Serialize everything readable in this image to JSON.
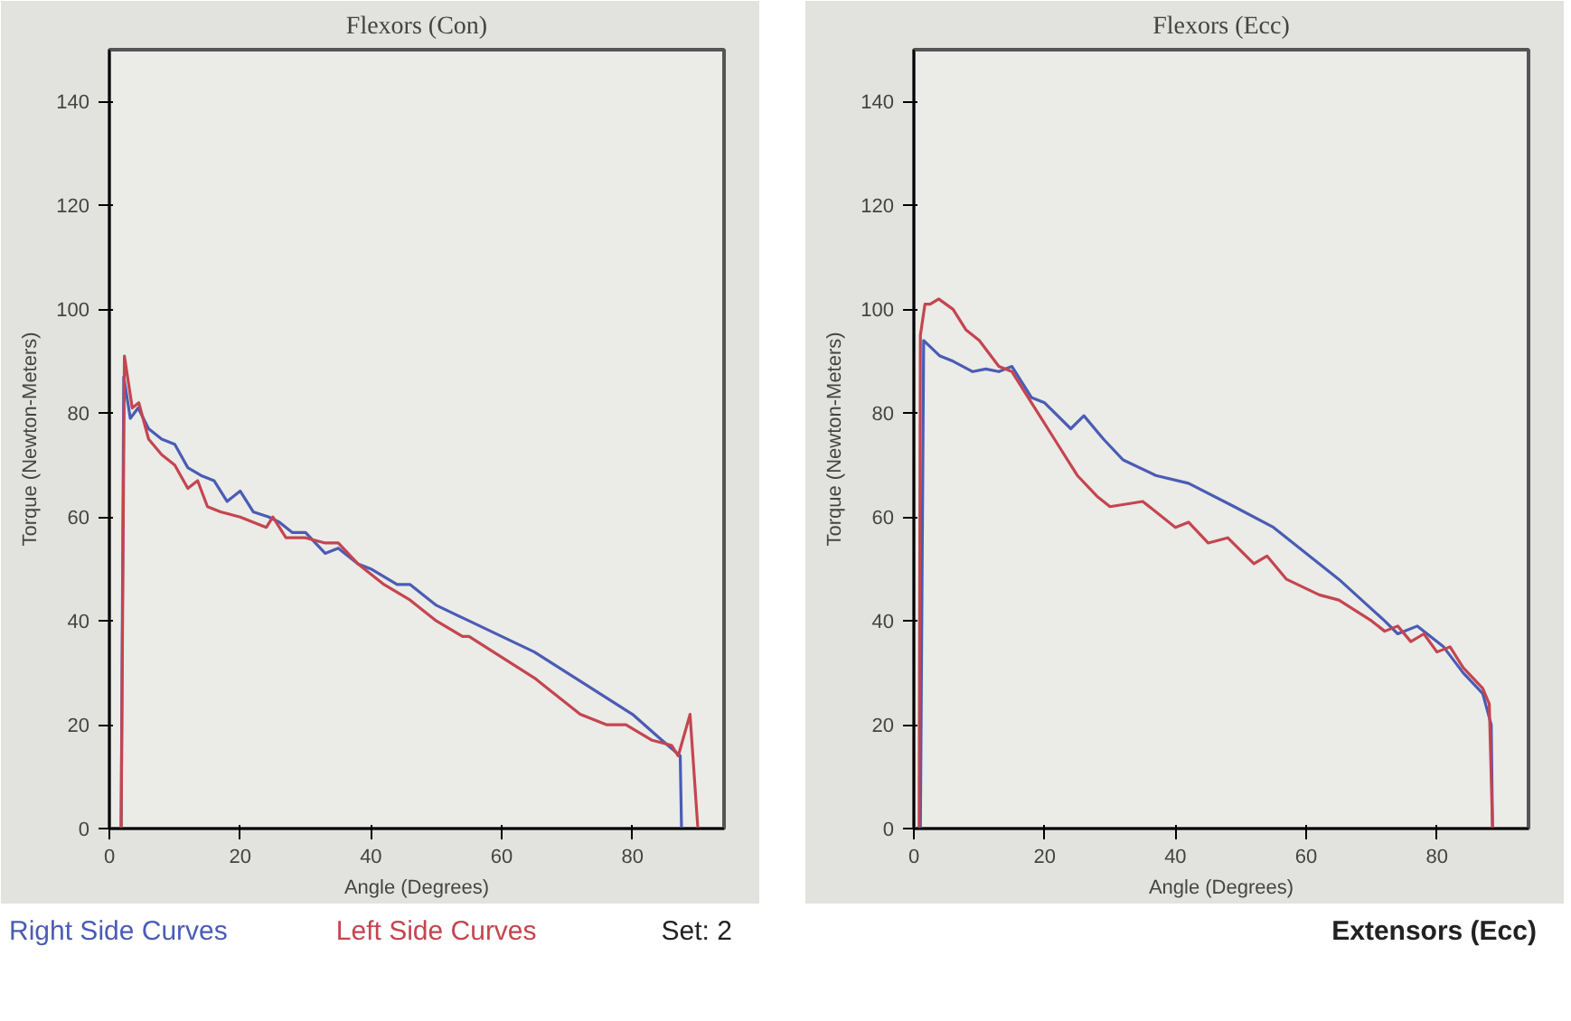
{
  "chart_data": [
    {
      "type": "line",
      "title": "Flexors (Con)",
      "xlabel": "Angle (Degrees)",
      "ylabel": "Torque (Newton-Meters)",
      "xlim": [
        0,
        94
      ],
      "ylim": [
        0,
        150
      ],
      "xticks": [
        0,
        20,
        40,
        60,
        80
      ],
      "yticks": [
        0,
        20,
        40,
        60,
        80,
        100,
        120,
        140
      ],
      "grid": false,
      "annotations": [
        "Set: 2"
      ],
      "series": [
        {
          "name": "Right Side Curves",
          "color": "#4a5cb4",
          "x": [
            1.8,
            2.2,
            3.2,
            4.4,
            6,
            8,
            10,
            12,
            14,
            16,
            18,
            20,
            22,
            24.4,
            26,
            28,
            30,
            33,
            35,
            38,
            40,
            44,
            46,
            50,
            55,
            60,
            65,
            70,
            75,
            80,
            84.5,
            87.3,
            87.5
          ],
          "values": [
            0,
            87,
            79,
            81,
            77,
            75,
            74,
            69.5,
            68,
            67,
            63,
            65,
            61,
            60,
            59,
            57,
            57,
            53,
            54,
            51,
            50,
            47,
            47,
            43,
            40,
            37,
            34,
            30,
            26,
            22,
            17,
            14,
            0
          ]
        },
        {
          "name": "Left Side Curves",
          "color": "#c4454f",
          "x": [
            1.8,
            2.3,
            3.5,
            4.5,
            6,
            8,
            10,
            12,
            13.5,
            15,
            17,
            20,
            22,
            24,
            25,
            27,
            30,
            33,
            35,
            38,
            42,
            46,
            50,
            54,
            55,
            60,
            65,
            70,
            72,
            76,
            79,
            83,
            86,
            87,
            88.8,
            90
          ],
          "values": [
            0,
            91,
            81,
            82,
            75,
            72,
            70,
            65.5,
            67,
            62,
            61,
            60,
            59,
            58,
            60,
            56,
            56,
            55,
            55,
            51,
            47,
            44,
            40,
            37,
            37,
            33,
            29,
            24,
            22,
            20,
            20,
            17,
            16,
            14,
            22,
            0
          ]
        }
      ]
    },
    {
      "type": "line",
      "title": "Flexors (Ecc)",
      "xlabel": "Angle (Degrees)",
      "ylabel": "Torque (Newton-Meters)",
      "xlim": [
        0,
        94
      ],
      "ylim": [
        0,
        150
      ],
      "xticks": [
        0,
        20,
        40,
        60,
        80
      ],
      "yticks": [
        0,
        20,
        40,
        60,
        80,
        100,
        120,
        140
      ],
      "grid": false,
      "annotations": [
        "Extensors (Ecc)"
      ],
      "series": [
        {
          "color": "#4a5cb4",
          "x": [
            1,
            1.5,
            4,
            6,
            9,
            11,
            13,
            15,
            18,
            20,
            24,
            26,
            29,
            32,
            37,
            42,
            49,
            55,
            60,
            65,
            72,
            74,
            77,
            81,
            84,
            87,
            88.3,
            88.5
          ],
          "values": [
            0,
            94,
            91,
            90,
            88,
            88.5,
            88,
            89,
            83,
            82,
            77,
            79.5,
            75,
            71,
            68,
            66.5,
            62,
            58,
            53,
            48,
            40,
            37.5,
            39,
            35,
            30,
            26,
            20,
            0
          ]
        },
        {
          "color": "#c4454f",
          "x": [
            0.8,
            1,
            1.7,
            2.5,
            3.8,
            6,
            8,
            10,
            13,
            15,
            18,
            22,
            25,
            28,
            30,
            35,
            40,
            42,
            45,
            48,
            52,
            54,
            57,
            62,
            65,
            70,
            72,
            74,
            76,
            78,
            80,
            82,
            84,
            87,
            88,
            88.5
          ],
          "values": [
            0,
            95,
            101,
            101,
            102,
            100,
            96,
            94,
            89,
            88,
            82,
            74,
            68,
            64,
            62,
            63,
            58,
            59,
            55,
            56,
            51,
            52.5,
            48,
            45,
            44,
            40,
            38,
            39,
            36,
            37.5,
            34,
            35,
            31,
            27,
            24,
            0
          ]
        }
      ]
    }
  ]
}
